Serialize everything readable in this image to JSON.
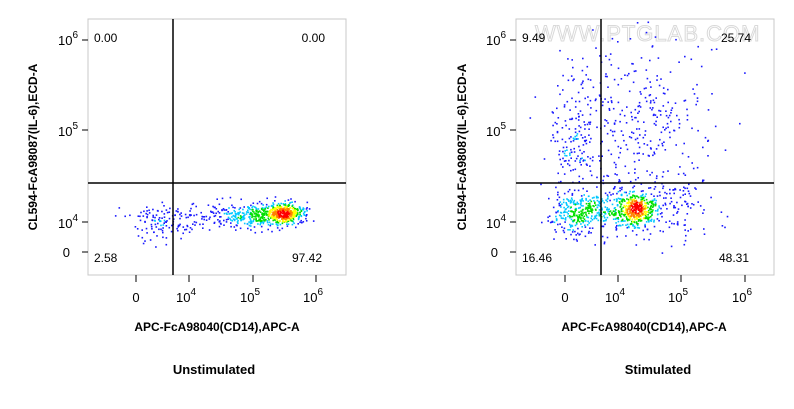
{
  "watermark": "WWW.PTGLAB.COM",
  "chart_data": [
    {
      "type": "scatter",
      "subtype": "flow-cytometry-density-dot-plot",
      "title": "Unstimulated",
      "xlabel": "APC-FcA98040(CD14),APC-A",
      "ylabel": "CL594-FcA98087(IL-6),ECD-A",
      "x_scale": "biexponential",
      "y_scale": "biexponential",
      "x_ticks": [
        {
          "value": 0,
          "base": "0",
          "exp": ""
        },
        {
          "value": 10000,
          "base": "10",
          "exp": "4"
        },
        {
          "value": 100000,
          "base": "10",
          "exp": "5"
        },
        {
          "value": 1000000,
          "base": "10",
          "exp": "6"
        }
      ],
      "y_ticks": [
        {
          "value": 0,
          "base": "0",
          "exp": ""
        },
        {
          "value": 10000,
          "base": "10",
          "exp": "4"
        },
        {
          "value": 100000,
          "base": "10",
          "exp": "5"
        },
        {
          "value": 1000000,
          "base": "10",
          "exp": "6"
        }
      ],
      "gate": {
        "x": 5500,
        "y": 22000
      },
      "quadrants": {
        "upper_left": "0.00",
        "upper_right": "0.00",
        "lower_left": "2.58",
        "lower_right": "97.42"
      },
      "color_scale": [
        "#1a1aff",
        "#00c8ff",
        "#00e000",
        "#ffff00",
        "#ff8000",
        "#ff0000"
      ],
      "grid": false,
      "legend": "none"
    },
    {
      "type": "scatter",
      "subtype": "flow-cytometry-density-dot-plot",
      "title": "Stimulated",
      "xlabel": "APC-FcA98040(CD14),APC-A",
      "ylabel": "CL594-FcA98087(IL-6),ECD-A",
      "x_scale": "biexponential",
      "y_scale": "biexponential",
      "x_ticks": [
        {
          "value": 0,
          "base": "0",
          "exp": ""
        },
        {
          "value": 10000,
          "base": "10",
          "exp": "4"
        },
        {
          "value": 100000,
          "base": "10",
          "exp": "5"
        },
        {
          "value": 1000000,
          "base": "10",
          "exp": "6"
        }
      ],
      "y_ticks": [
        {
          "value": 0,
          "base": "0",
          "exp": ""
        },
        {
          "value": 10000,
          "base": "10",
          "exp": "4"
        },
        {
          "value": 100000,
          "base": "10",
          "exp": "5"
        },
        {
          "value": 1000000,
          "base": "10",
          "exp": "6"
        }
      ],
      "gate": {
        "x": 5500,
        "y": 22000
      },
      "quadrants": {
        "upper_left": "9.49",
        "upper_right": "25.74",
        "lower_left": "16.46",
        "lower_right": "48.31"
      },
      "color_scale": [
        "#1a1aff",
        "#00c8ff",
        "#00e000",
        "#ffff00",
        "#ff8000",
        "#ff0000"
      ],
      "grid": false,
      "legend": "none"
    }
  ]
}
